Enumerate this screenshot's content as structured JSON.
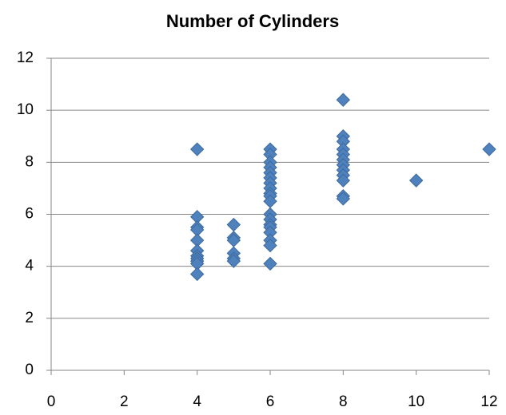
{
  "chart_data": {
    "type": "scatter",
    "title": "Number of Cylinders",
    "x": [
      4,
      4,
      4,
      4,
      4,
      4,
      4,
      4,
      4,
      4,
      4,
      5,
      5,
      5,
      5,
      5,
      5,
      6,
      6,
      6,
      6,
      6,
      6,
      6,
      6,
      6,
      6,
      6,
      6,
      6,
      6,
      6,
      6,
      6,
      6,
      6,
      8,
      8,
      8,
      8,
      8,
      8,
      8,
      8,
      8,
      8,
      8,
      8,
      10,
      12
    ],
    "values": [
      8.5,
      5.9,
      5.5,
      5.4,
      5.0,
      4.6,
      4.4,
      4.3,
      4.2,
      4.1,
      3.7,
      5.6,
      5.1,
      5.0,
      4.5,
      4.3,
      4.2,
      8.5,
      8.3,
      8.0,
      7.8,
      7.6,
      7.4,
      7.2,
      7.0,
      6.8,
      6.7,
      6.5,
      6.0,
      5.8,
      5.6,
      5.5,
      5.3,
      5.0,
      4.8,
      4.1,
      10.4,
      9.0,
      8.8,
      8.5,
      8.3,
      8.1,
      7.9,
      7.7,
      7.5,
      7.3,
      6.7,
      6.6,
      7.3,
      8.5
    ],
    "color": "#4f81bd",
    "xlim": [
      0,
      12
    ],
    "xticks": [
      0,
      2,
      4,
      6,
      8,
      10,
      12
    ],
    "ylim": [
      0,
      12
    ],
    "yticks": [
      0,
      2,
      4,
      6,
      8,
      10,
      12
    ],
    "grid": true
  }
}
